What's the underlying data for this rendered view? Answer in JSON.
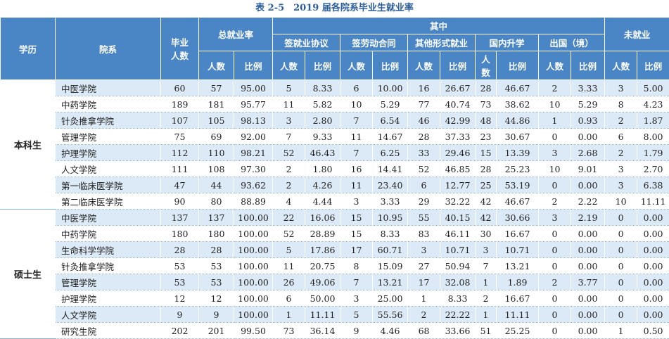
{
  "title": "表 2-5　2019 届各院系毕业生就业率",
  "headers": {
    "edu": "学历",
    "dept": "院系",
    "grad_count_1": "毕业",
    "grad_count_2": "人数",
    "total_rate": "总就业率",
    "among": "其中",
    "sign_agreement": "签就业协议",
    "sign_contract": "签劳动合同",
    "other_forms": "其他形式就业",
    "domestic_study_1": "国内",
    "domestic_study_2": "升学",
    "abroad": "出国（境）",
    "unemployed": "未就业",
    "count": "人数",
    "ratio": "比例",
    "count_v1": "人",
    "count_v2": "数"
  },
  "groups": [
    {
      "name": "本科生",
      "rows": [
        [
          "中医学院",
          "60",
          "57",
          "95.00",
          "5",
          "8.33",
          "6",
          "10.00",
          "16",
          "26.67",
          "28",
          "46.67",
          "2",
          "3.33",
          "3",
          "5.00"
        ],
        [
          "中药学院",
          "189",
          "181",
          "95.77",
          "11",
          "5.82",
          "10",
          "5.29",
          "77",
          "40.74",
          "73",
          "38.62",
          "10",
          "5.29",
          "8",
          "4.23"
        ],
        [
          "针灸推拿学院",
          "107",
          "105",
          "98.13",
          "3",
          "2.80",
          "7",
          "6.54",
          "46",
          "42.99",
          "48",
          "44.86",
          "1",
          "0.93",
          "2",
          "1.87"
        ],
        [
          "管理学院",
          "75",
          "69",
          "92.00",
          "7",
          "9.33",
          "11",
          "14.67",
          "28",
          "37.33",
          "23",
          "30.67",
          "0",
          "0.00",
          "6",
          "8.00"
        ],
        [
          "护理学院",
          "112",
          "110",
          "98.21",
          "52",
          "46.43",
          "7",
          "6.25",
          "33",
          "29.46",
          "15",
          "13.39",
          "3",
          "2.68",
          "2",
          "1.79"
        ],
        [
          "人文学院",
          "111",
          "108",
          "97.30",
          "2",
          "1.80",
          "16",
          "14.41",
          "52",
          "46.85",
          "28",
          "25.23",
          "10",
          "9.01",
          "3",
          "2.70"
        ],
        [
          "第一临床医学院",
          "47",
          "44",
          "93.62",
          "2",
          "4.26",
          "11",
          "23.40",
          "6",
          "12.77",
          "25",
          "53.19",
          "0",
          "0.00",
          "3",
          "6.38"
        ],
        [
          "第二临床医学院",
          "90",
          "80",
          "88.89",
          "4",
          "4.44",
          "3",
          "3.33",
          "29",
          "32.22",
          "42",
          "46.67",
          "2",
          "2.22",
          "10",
          "11.11"
        ]
      ]
    },
    {
      "name": "硕士生",
      "rows": [
        [
          "中医学院",
          "137",
          "137",
          "100.00",
          "22",
          "16.06",
          "15",
          "10.95",
          "55",
          "40.15",
          "42",
          "30.66",
          "3",
          "2.19",
          "0",
          "0.00"
        ],
        [
          "中药学院",
          "180",
          "180",
          "100.00",
          "52",
          "28.89",
          "15",
          "8.33",
          "83",
          "46.11",
          "30",
          "16.67",
          "0",
          "0.00",
          "0",
          "0.00"
        ],
        [
          "生命科学学院",
          "28",
          "28",
          "100.00",
          "5",
          "17.86",
          "17",
          "60.71",
          "3",
          "10.71",
          "3",
          "10.71",
          "0",
          "0.00",
          "0",
          "0.00"
        ],
        [
          "针灸推拿学院",
          "53",
          "53",
          "100.00",
          "11",
          "20.75",
          "8",
          "15.09",
          "27",
          "50.94",
          "7",
          "13.21",
          "0",
          "0.00",
          "0",
          "0.00"
        ],
        [
          "管理学院",
          "53",
          "53",
          "100.00",
          "26",
          "49.06",
          "7",
          "13.21",
          "17",
          "32.08",
          "1",
          "1.89",
          "2",
          "3.77",
          "0",
          "0.00"
        ],
        [
          "护理学院",
          "12",
          "12",
          "100.00",
          "6",
          "50.00",
          "3",
          "25.00",
          "1",
          "8.33",
          "2",
          "16.67",
          "0",
          "0.00",
          "0",
          "0.00"
        ],
        [
          "人文学院",
          "9",
          "9",
          "100.00",
          "1",
          "11.11",
          "5",
          "55.56",
          "2",
          "22.22",
          "1",
          "11.11",
          "0",
          "0.00",
          "0",
          "0.00"
        ],
        [
          "研究生院",
          "202",
          "201",
          "99.50",
          "73",
          "36.14",
          "9",
          "4.46",
          "68",
          "33.66",
          "51",
          "25.25",
          "0",
          "0.00",
          "1",
          "0.50"
        ]
      ]
    }
  ]
}
